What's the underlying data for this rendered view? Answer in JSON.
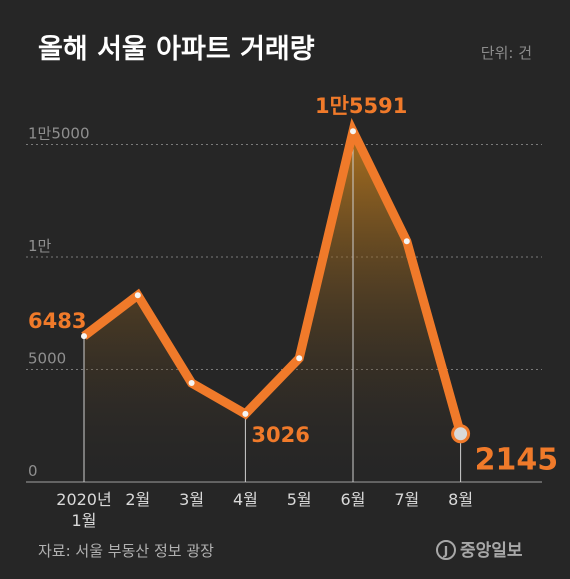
{
  "header": {
    "title": "올해 서울 아파트 거래량",
    "unit": "단위: 건"
  },
  "footer": {
    "source": "자료: 서울 부동산 정보 광장",
    "logo_text": "중앙일보"
  },
  "colors": {
    "background": "#262626",
    "line": "#f07a2a",
    "label": "#f07a2a",
    "grid": "#7a7a7a"
  },
  "chart_data": {
    "type": "line",
    "title": "올해 서울 아파트 거래량",
    "xlabel": "",
    "ylabel": "",
    "unit": "단위: 건",
    "categories": [
      "2020년 1월",
      "2월",
      "3월",
      "4월",
      "5월",
      "6월",
      "7월",
      "8월"
    ],
    "x_tick_labels": [
      [
        "2020년",
        "1월"
      ],
      [
        "2월"
      ],
      [
        "3월"
      ],
      [
        "4월"
      ],
      [
        "5월"
      ],
      [
        "6월"
      ],
      [
        "7월"
      ],
      [
        "8월"
      ]
    ],
    "values": [
      6483,
      8300,
      4400,
      3026,
      5500,
      15591,
      10700,
      2145
    ],
    "ylim": [
      0,
      16000
    ],
    "y_ticks": [
      {
        "value": 0,
        "label": "0"
      },
      {
        "value": 5000,
        "label": "5000"
      },
      {
        "value": 10000,
        "label": "1만"
      },
      {
        "value": 15000,
        "label": "1만5000"
      }
    ],
    "data_labels": [
      {
        "index": 0,
        "text": "6483"
      },
      {
        "index": 3,
        "text": "3026"
      },
      {
        "index": 5,
        "text": "1만5591"
      },
      {
        "index": 7,
        "text": "2145"
      }
    ],
    "grid": true,
    "legend": "none"
  }
}
